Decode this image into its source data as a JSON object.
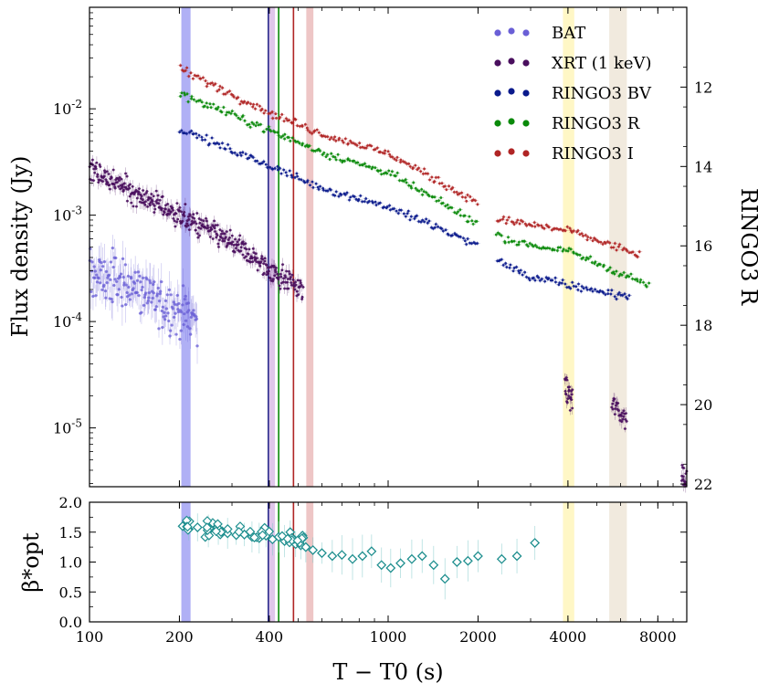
{
  "chart_data": [
    {
      "type": "scatter",
      "panel": "top",
      "xscale": "log",
      "yscale": "log",
      "xlim": [
        100,
        10000
      ],
      "ylim": [
        2.8e-06,
        0.09
      ],
      "xticks": [
        100,
        200,
        400,
        1000,
        2000,
        4000,
        8000
      ],
      "yticks": [
        1e-05,
        0.0001,
        0.001,
        0.01
      ],
      "ytick_labels": [
        "10^-5",
        "10^-4",
        "10^-3",
        "10^-2"
      ],
      "ylabel": "Flux density (Jy)",
      "y2label": "RINGO3 R",
      "y2ticks": [
        12,
        14,
        16,
        18,
        20,
        22
      ],
      "legend_position": "top-right",
      "series": [
        {
          "name": "BAT",
          "color": "#6a5fd6",
          "segments": [
            {
              "x": [
                100,
                140,
                180,
                230
              ],
              "y": [
                0.00028,
                0.00022,
                0.00014,
                0.00011
              ]
            }
          ]
        },
        {
          "name": "XRT (1 keV)",
          "color": "#4a0f5e",
          "segments": [
            {
              "x": [
                100,
                200,
                300,
                400,
                520
              ],
              "y": [
                0.0027,
                0.001,
                0.00055,
                0.00031,
                0.0002
              ]
            },
            {
              "x": [
                3900,
                4150
              ],
              "y": [
                2.3e-05,
                1.8e-05
              ]
            },
            {
              "x": [
                5600,
                6300
              ],
              "y": [
                1.7e-05,
                1.18e-05
              ]
            },
            {
              "x": [
                9600,
                10000
              ],
              "y": [
                3.8e-06,
                3.3e-06
              ]
            }
          ]
        },
        {
          "name": "RINGO3  BV",
          "color": "#0a1a8c",
          "segments": [
            {
              "x": [
                200,
                400,
                600,
                1000,
                2000
              ],
              "y": [
                0.0065,
                0.0029,
                0.0018,
                0.0012,
                0.00052
              ]
            },
            {
              "x": [
                2300,
                3000,
                4000,
                6500
              ],
              "y": [
                0.00038,
                0.00026,
                0.00022,
                0.00017
              ]
            }
          ]
        },
        {
          "name": "RINGO3  R",
          "color": "#0a8a0a",
          "segments": [
            {
              "x": [
                200,
                400,
                600,
                1000,
                2000
              ],
              "y": [
                0.014,
                0.0063,
                0.0039,
                0.0025,
                0.00083
              ]
            },
            {
              "x": [
                2300,
                3000,
                4000,
                7500
              ],
              "y": [
                0.00064,
                0.00052,
                0.00046,
                0.00022
              ]
            }
          ]
        },
        {
          "name": "RINGO3  I",
          "color": "#b02525",
          "segments": [
            {
              "x": [
                200,
                400,
                600,
                1000,
                2000
              ],
              "y": [
                0.024,
                0.0092,
                0.0058,
                0.0038,
                0.0013
              ]
            },
            {
              "x": [
                2300,
                3000,
                4000,
                7000
              ],
              "y": [
                0.00092,
                0.00081,
                0.00072,
                0.00042
              ]
            }
          ]
        }
      ],
      "bands": [
        {
          "x": [
            203,
            218
          ],
          "color": "#7b7bee"
        },
        {
          "x": [
            398,
            418
          ],
          "color": "#c9a0dc"
        },
        {
          "x": [
            532,
            562
          ],
          "color": "#e2a0a0"
        },
        {
          "x": [
            3850,
            4200
          ],
          "color": "#fff2a0"
        },
        {
          "x": [
            5500,
            6300
          ],
          "color": "#e8dcc8"
        }
      ],
      "vlines": [
        {
          "x": 397,
          "color": "#2a2a8c"
        },
        {
          "x": 430,
          "color": "#0a8a0a"
        },
        {
          "x": 482,
          "color": "#b02525"
        }
      ]
    },
    {
      "type": "scatter",
      "panel": "bottom",
      "xscale": "log",
      "xlim": [
        100,
        10000
      ],
      "ylim": [
        0.0,
        2.0
      ],
      "yticks": [
        "0.0",
        "0.5",
        "1.0",
        "1.5",
        "2.0"
      ],
      "xtick_labels": [
        "100",
        "200",
        "400",
        "1000",
        "2000",
        "4000",
        "8000"
      ],
      "xlabel": "T − T0 (s)",
      "ylabel": "β*opt",
      "color": "#1f8f8f",
      "x": [
        205,
        215,
        230,
        250,
        270,
        290,
        310,
        330,
        350,
        370,
        390,
        410,
        430,
        450,
        470,
        490,
        510,
        530,
        560,
        600,
        650,
        700,
        760,
        820,
        880,
        950,
        1020,
        1100,
        1200,
        1300,
        1420,
        1550,
        1700,
        1850,
        2000,
        2400,
        2700,
        3100
      ],
      "y": [
        1.6,
        1.55,
        1.58,
        1.52,
        1.5,
        1.48,
        1.45,
        1.46,
        1.42,
        1.4,
        1.44,
        1.38,
        1.42,
        1.35,
        1.5,
        1.3,
        1.28,
        1.25,
        1.2,
        1.15,
        1.1,
        1.12,
        1.05,
        1.1,
        1.18,
        0.95,
        0.9,
        0.98,
        1.05,
        1.1,
        0.95,
        0.72,
        1.0,
        1.02,
        1.1,
        1.05,
        1.1,
        1.32
      ]
    }
  ]
}
